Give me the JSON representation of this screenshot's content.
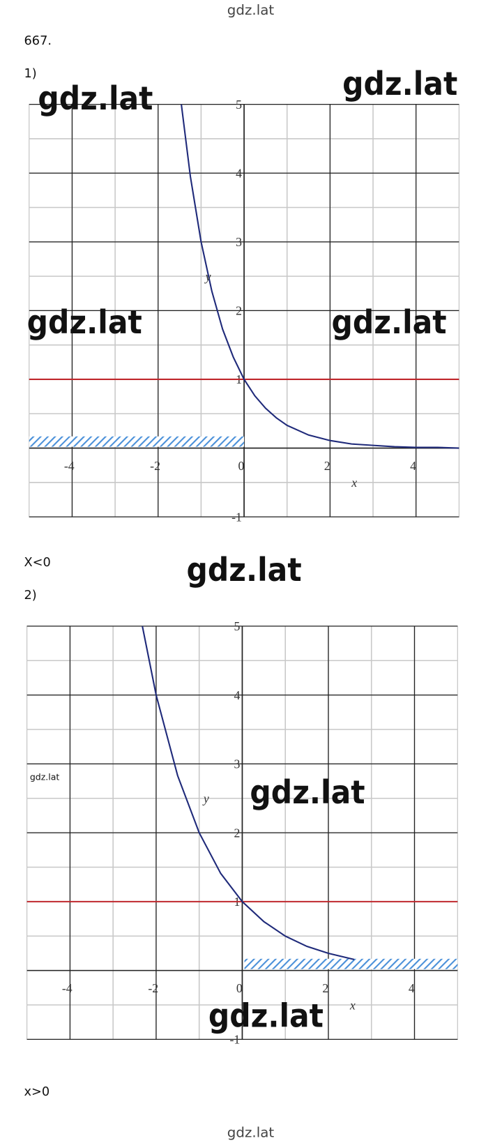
{
  "header": "gdz.lat",
  "problem": "667.",
  "plots": [
    {
      "type": "line",
      "label": "1)",
      "answer": "X<0",
      "xlabel": "x",
      "ylabel": "y",
      "xlim": [
        -5,
        5
      ],
      "ylim": [
        -1,
        5
      ],
      "xticks": [
        -4,
        -2,
        0,
        2,
        4
      ],
      "yticks": [
        -1,
        1,
        2,
        3,
        4,
        5
      ],
      "grid": true,
      "series": [
        {
          "color": "#1f2a7a",
          "x": [
            -1.46,
            -1.25,
            -1,
            -0.75,
            -0.5,
            -0.25,
            0,
            0.25,
            0.5,
            0.75,
            1,
            1.5,
            2,
            2.5,
            3,
            3.5,
            4,
            4.5,
            5
          ],
          "values": [
            5,
            3.95,
            3,
            2.28,
            1.73,
            1.32,
            1,
            0.76,
            0.58,
            0.44,
            0.33,
            0.19,
            0.11,
            0.06,
            0.04,
            0.02,
            0.01,
            0.01,
            0
          ]
        }
      ],
      "hline": {
        "value": 1,
        "color": "#c0282d"
      },
      "shade": {
        "x": [
          -5,
          0
        ],
        "y": [
          0.02,
          0.17
        ],
        "color": "#4a90d9"
      }
    },
    {
      "type": "line",
      "label": "2)",
      "answer": "x>0",
      "xlabel": "x",
      "ylabel": "y",
      "xlim": [
        -5,
        5
      ],
      "ylim": [
        -1,
        5
      ],
      "xticks": [
        -4,
        -2,
        0,
        2,
        4
      ],
      "yticks": [
        -1,
        1,
        2,
        3,
        4,
        5
      ],
      "grid": true,
      "series": [
        {
          "color": "#1f2a7a",
          "x": [
            -2.32,
            -2,
            -1.5,
            -1,
            -0.5,
            0,
            0.5,
            1,
            1.5,
            2,
            2.6
          ],
          "values": [
            5,
            4,
            2.83,
            2,
            1.41,
            1,
            0.71,
            0.5,
            0.35,
            0.25,
            0.16
          ]
        }
      ],
      "hline": {
        "value": 1,
        "color": "#c0282d"
      },
      "shade": {
        "x": [
          0.05,
          5
        ],
        "y": [
          0.02,
          0.17
        ],
        "color": "#4a90d9"
      }
    }
  ],
  "watermarks": [
    "gdz.lat",
    "gdz.lat",
    "gdz.lat",
    "gdz.lat",
    "gdz.lat",
    "gdz.lat",
    "gdz.lat",
    "gdz.lat"
  ],
  "footer": "gdz.lat"
}
